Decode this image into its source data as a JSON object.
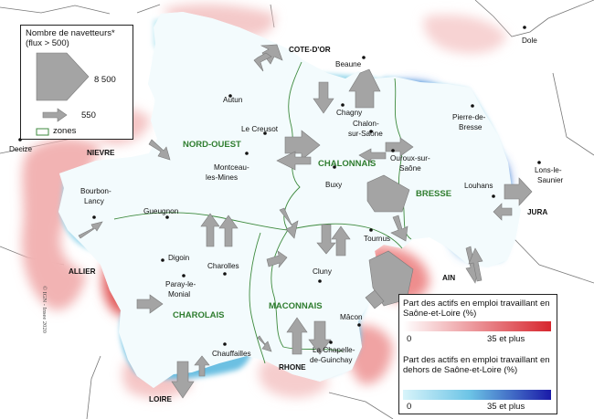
{
  "legend_flux": {
    "title": "Nombre de navetteurs*",
    "subtitle": "(flux > 500)",
    "big_value": "8 500",
    "small_value": "550",
    "zones_label": "zones"
  },
  "legend_share": {
    "inside_title": "Part des actifs en emploi travaillant en Saône-et-Loire (%)",
    "inside_min": "0",
    "inside_max": "35 et  plus",
    "outside_title": "Part des actifs en emploi travaillant en dehors de Saône-et-Loire (%)",
    "outside_min": "0",
    "outside_max": "35 et  plus",
    "inside_color": "#d7262e",
    "outside_color": "#1a1aa8"
  },
  "copyright": "© IGN - Insee 2020",
  "zones": [
    "NORD-OUEST",
    "CHALONNAIS",
    "BRESSE",
    "CHAROLAIS",
    "MACONNAIS"
  ],
  "departments": [
    "COTE-D'OR",
    "NIEVRE",
    "JURA",
    "ALLIER",
    "AIN",
    "RHONE",
    "LOIRE"
  ],
  "cities": {
    "dole": "Dole",
    "beaune": "Beaune",
    "autun": "Autun",
    "decize": "Decize",
    "le_creusot": "Le Creusot",
    "chagny": "Chagny",
    "chalon": "Chalon-sur-Saône",
    "ouroux": "Ouroux-sur-Saône",
    "pierre": "Pierre-de-Bresse",
    "lons": "Lons-le-Saunier",
    "montceau": "Montceau-les-Mines",
    "buxy": "Buxy",
    "louhans": "Louhans",
    "bourbon": "Bourbon-Lancy",
    "gueugnon": "Gueugnon",
    "tournus": "Tournus",
    "digoin": "Digoin",
    "charolles": "Charolles",
    "cluny": "Cluny",
    "paray": "Paray-le-Monial",
    "macon": "Mâcon",
    "chauffailles": "Chauffailles",
    "chapelle": "La Chapelle-de-Guinchay"
  }
}
